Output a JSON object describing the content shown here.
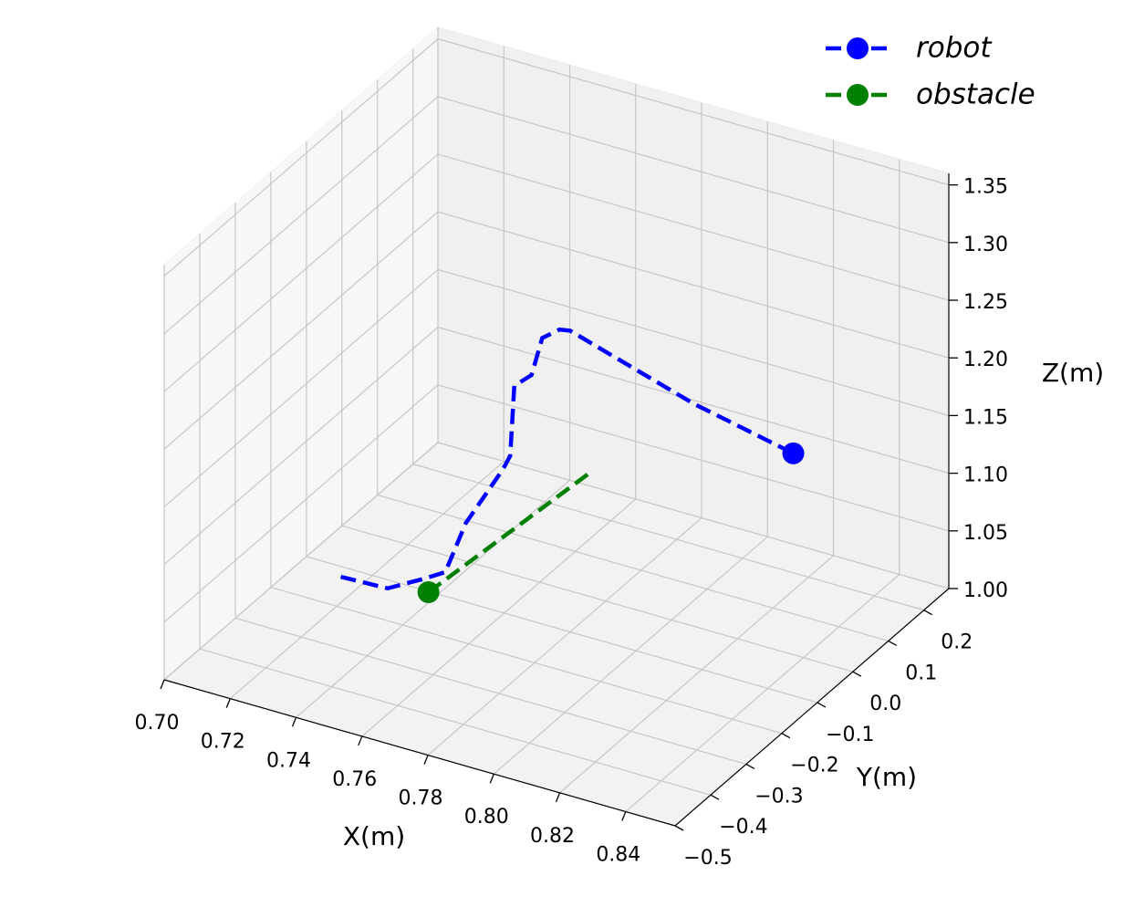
{
  "chart_data": {
    "type": "line3d",
    "xlabel": "X(m)",
    "ylabel": "Y(m)",
    "zlabel": "Z(m)",
    "xlim": [
      0.7,
      0.855
    ],
    "ylim": [
      -0.5,
      0.27
    ],
    "zlim": [
      1.0,
      1.36
    ],
    "xticks": [
      {
        "value": 0.7,
        "label": "0.70"
      },
      0.72,
      0.74,
      0.76,
      0.78,
      {
        "value": 0.8,
        "label": "0.80"
      },
      0.82,
      0.84
    ],
    "yticks": [
      {
        "value": -0.5,
        "label": "−0.5"
      },
      {
        "value": -0.4,
        "label": "−0.4"
      },
      {
        "value": -0.3,
        "label": "−0.3"
      },
      {
        "value": -0.2,
        "label": "−0.2"
      },
      {
        "value": -0.1,
        "label": "−0.1"
      },
      {
        "value": 0.0,
        "label": "0.0"
      },
      0.1,
      0.2
    ],
    "zticks": [
      {
        "value": 1.0,
        "label": "1.00"
      },
      1.05,
      {
        "value": 1.1,
        "label": "1.10"
      },
      1.15,
      {
        "value": 1.2,
        "label": "1.20"
      },
      1.25,
      {
        "value": 1.3,
        "label": "1.30"
      },
      1.35
    ],
    "grid": true,
    "legend": "upper right",
    "series": [
      {
        "name": "robot",
        "color": "#0000ff",
        "marker": "end",
        "x": [
          0.732,
          0.743,
          0.751,
          0.754,
          0.757,
          0.765,
          0.764,
          0.762,
          0.764,
          0.764,
          0.766,
          0.766,
          0.77,
          0.797,
          0.824
        ],
        "y": [
          -0.3,
          -0.27,
          -0.24,
          -0.21,
          -0.18,
          -0.15,
          -0.12,
          -0.09,
          -0.06,
          -0.03,
          0.0,
          0.03,
          0.06,
          0.09,
          0.12
        ],
        "z": [
          1.062,
          1.053,
          1.06,
          1.06,
          1.097,
          1.142,
          1.145,
          1.196,
          1.199,
          1.223,
          1.224,
          1.215,
          1.198,
          1.161,
          1.132
        ]
      },
      {
        "name": "obstacle",
        "color": "#008000",
        "marker": "start",
        "x": [
          0.76,
          0.76,
          0.76
        ],
        "y": [
          -0.313,
          -0.083,
          0.147
        ],
        "z": [
          1.075,
          1.066,
          1.057
        ]
      }
    ]
  }
}
